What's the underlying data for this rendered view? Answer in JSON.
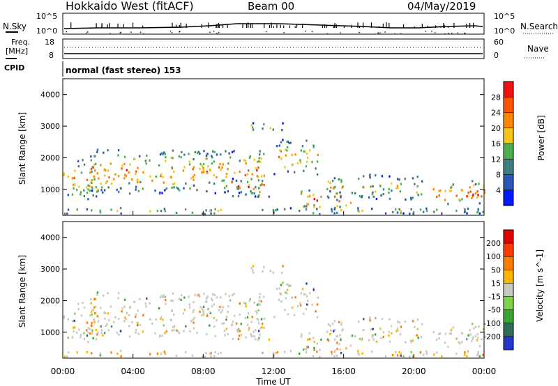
{
  "header": {
    "radar": "Hokkaido West (fitACF)",
    "beam": "Beam 00",
    "date": "04/May/2019"
  },
  "noise_panel": {
    "left_label": "N.Sky",
    "right_label": "N.Search",
    "left_ticks": [
      "10^5",
      "10^0"
    ],
    "right_ticks": [
      "10^5",
      "10^0"
    ]
  },
  "freq_panel": {
    "left_label_line1": "Freq.",
    "left_label_line2": "[MHz]",
    "left_ticks": [
      "18",
      "8"
    ],
    "right_label": "Nave",
    "right_ticks": [
      "60",
      "0"
    ]
  },
  "cpid_panel": {
    "label": "CPID",
    "mode": "normal (fast stereo) 153"
  },
  "time_axis": {
    "label": "Time UT",
    "ticks": [
      "00:00",
      "04:00",
      "08:00",
      "12:00",
      "16:00",
      "20:00",
      "00:00"
    ]
  },
  "chart_data": [
    {
      "type": "heatmap",
      "name": "power",
      "xlabel": "Time UT",
      "ylabel": "Slant Range [km]",
      "xlim": [
        0,
        24
      ],
      "ylim": [
        180,
        4500
      ],
      "yticks": [
        "1000",
        "2000",
        "3000",
        "4000"
      ],
      "colorbar": {
        "label": "Power [dB]",
        "ticks": [
          "28",
          "24",
          "20",
          "16",
          "12",
          "8",
          "4"
        ],
        "range": [
          0,
          30
        ],
        "colors": [
          "#0019ff",
          "#2a56b8",
          "#3f7f7f",
          "#4caf50",
          "#f5c518",
          "#ff8800",
          "#ff5500",
          "#ee1111"
        ]
      }
    },
    {
      "type": "heatmap",
      "name": "velocity",
      "xlabel": "Time UT",
      "ylabel": "Slant Range [km]",
      "xlim": [
        0,
        24
      ],
      "ylim": [
        180,
        4500
      ],
      "yticks": [
        "1000",
        "2000",
        "3000",
        "4000"
      ],
      "colorbar": {
        "label": "Velocity [m s^-1]",
        "ticks": [
          "200",
          "100",
          "50",
          "15",
          "-15",
          "-50",
          "-100",
          "-200"
        ],
        "colors": [
          "#2636c8",
          "#2e6d58",
          "#3aa534",
          "#7fd34a",
          "#c9c9c0",
          "#ffb400",
          "#ff7a00",
          "#ff3a00",
          "#e30000"
        ]
      }
    }
  ],
  "colors": {
    "frame": "#000000",
    "background": "#ffffff"
  }
}
